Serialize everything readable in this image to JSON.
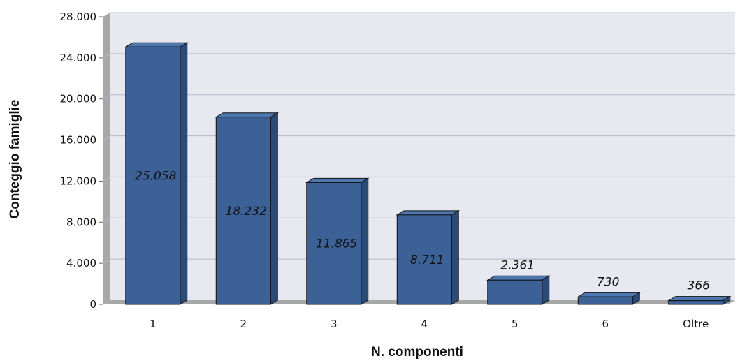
{
  "chart_data": {
    "type": "bar",
    "title": "",
    "xlabel": "N. componenti",
    "ylabel": "Conteggio famiglie",
    "categories": [
      "1",
      "2",
      "3",
      "4",
      "5",
      "6",
      "Oltre"
    ],
    "values": [
      25058,
      18232,
      11865,
      8711,
      2361,
      730,
      366
    ],
    "value_labels": [
      "25.058",
      "18.232",
      "11.865",
      "8.711",
      "2.361",
      "730",
      "366"
    ],
    "yticks": [
      0,
      4000,
      8000,
      12000,
      16000,
      20000,
      24000,
      28000
    ],
    "ytick_labels": [
      "0",
      "4.000",
      "8.000",
      "12.000",
      "16.000",
      "20.000",
      "24.000",
      "28.000"
    ],
    "ylim": [
      0,
      28000
    ],
    "grid": true,
    "legend": "none",
    "style": "3d",
    "colors": {
      "bar_front": "#3b6196",
      "bar_side": "#2a4a78",
      "bar_top": "#4d77b0",
      "plot_bg": "#e8e8f1",
      "wall": "#a7a7a7",
      "grid": "#b8b8c8"
    }
  }
}
